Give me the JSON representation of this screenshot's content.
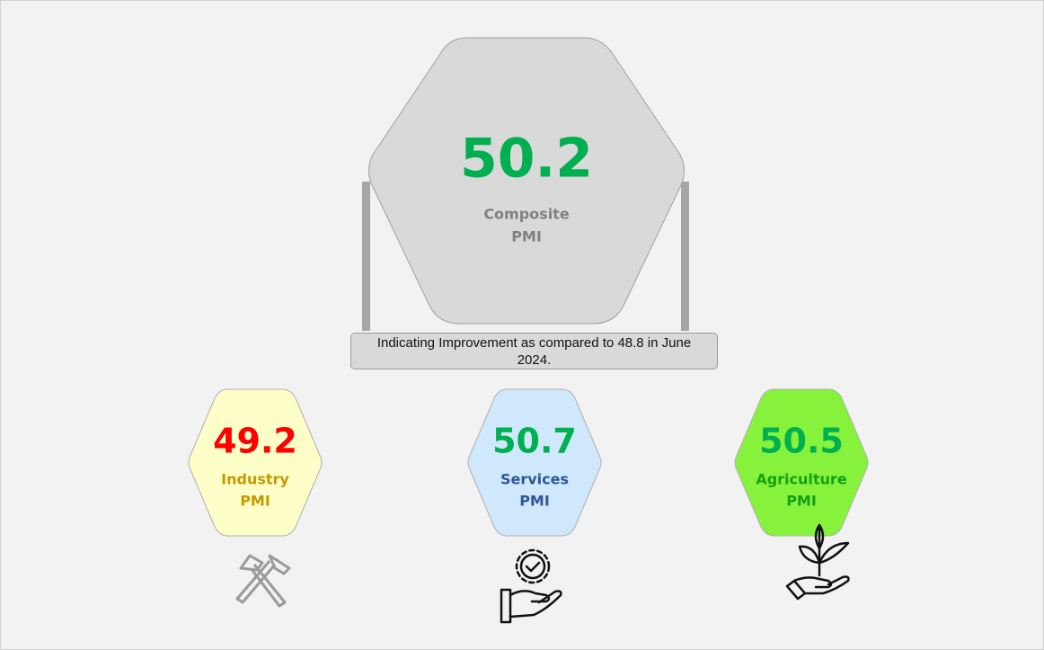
{
  "composite": {
    "value": "50.2",
    "label": [
      "Composite",
      "PMI"
    ]
  },
  "note": "Indicating Improvement as compared to 48.8 in June 2024.",
  "sectors": [
    {
      "value": "49.2",
      "label": [
        "Industry",
        "PMI"
      ]
    },
    {
      "value": "50.7",
      "label": [
        "Services",
        "PMI"
      ]
    },
    {
      "value": "50.5",
      "label": [
        "Agriculture",
        "PMI"
      ]
    }
  ]
}
